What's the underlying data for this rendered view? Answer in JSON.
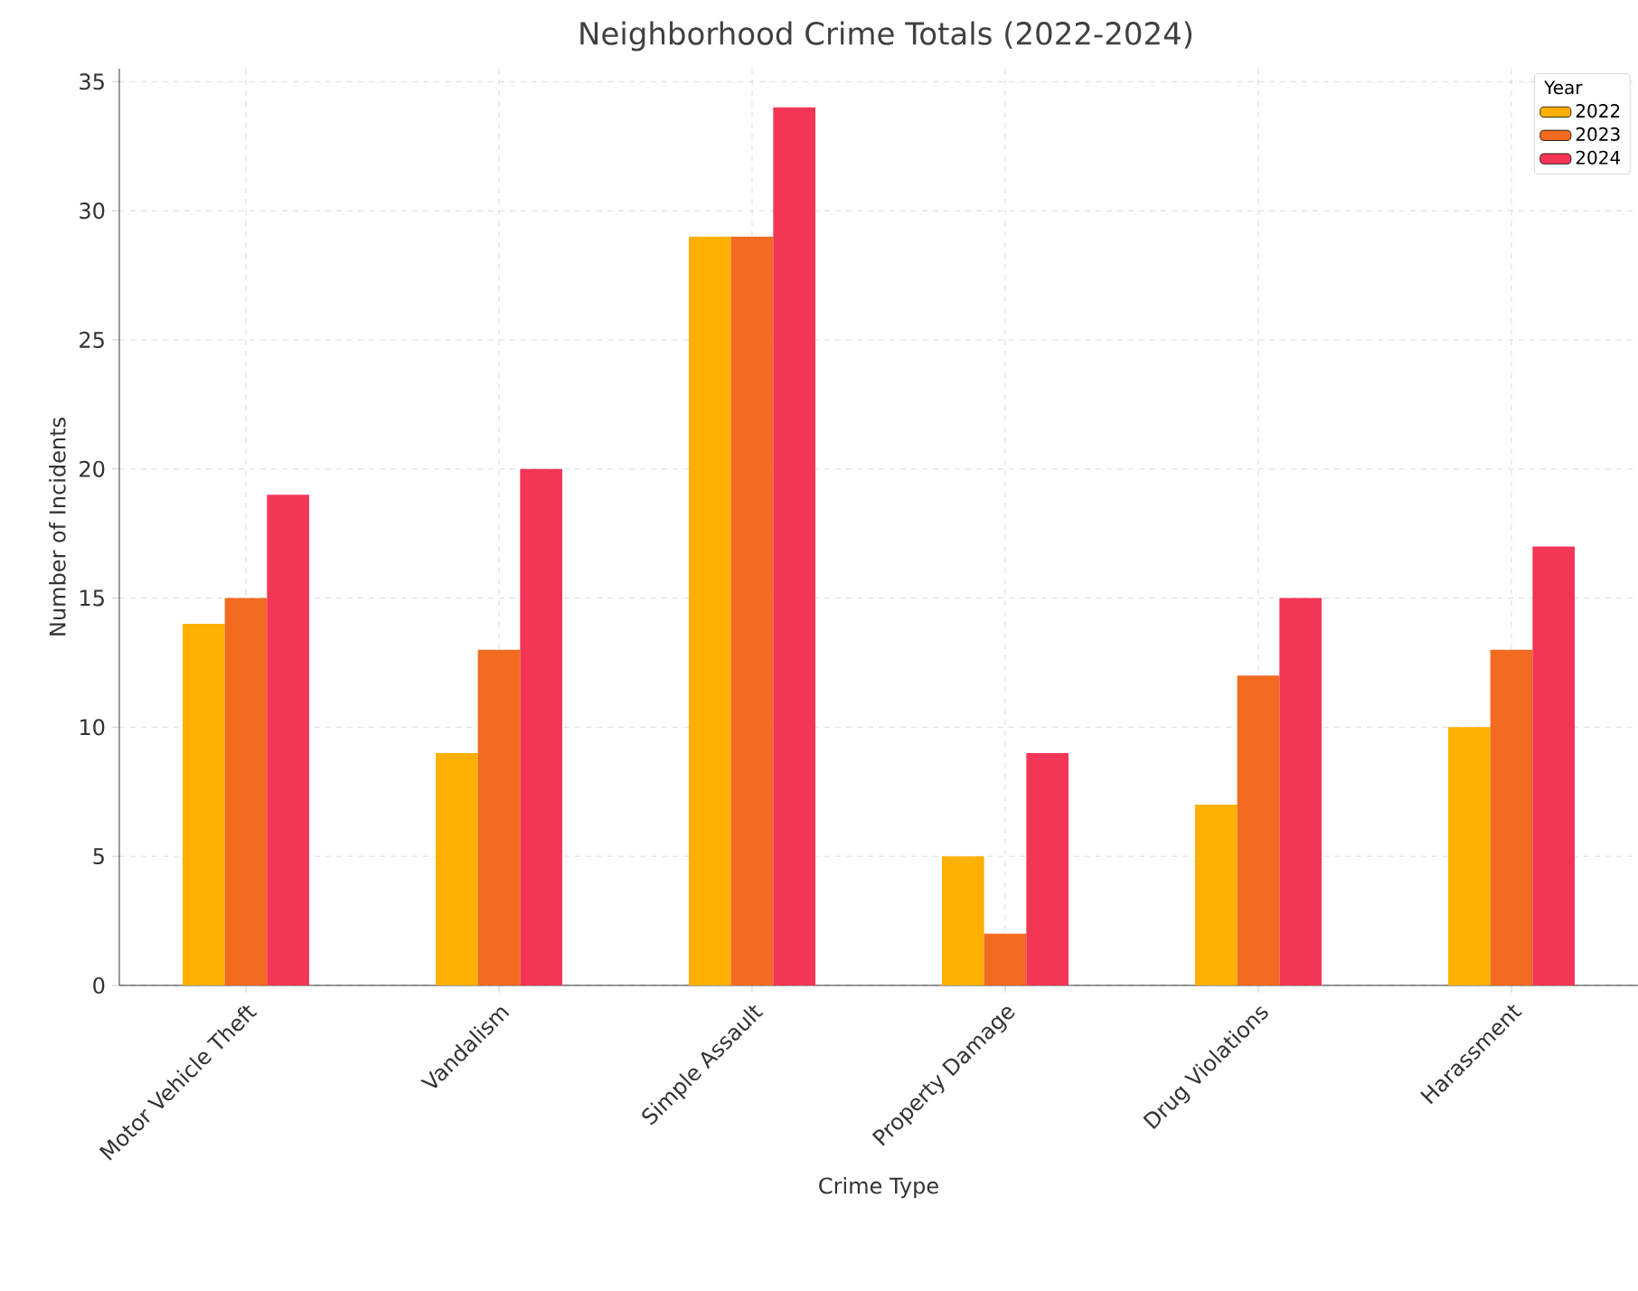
{
  "chart_data": {
    "type": "bar",
    "title": "Neighborhood Crime Totals (2022-2024)",
    "xlabel": "Crime Type",
    "ylabel": "Number of Incidents",
    "legend_title": "Year",
    "categories": [
      "Motor Vehicle Theft",
      "Vandalism",
      "Simple Assault",
      "Property Damage",
      "Drug Violations",
      "Harassment"
    ],
    "series": [
      {
        "name": "2022",
        "color": "#ffb000",
        "values": [
          14,
          9,
          29,
          5,
          7,
          10
        ]
      },
      {
        "name": "2023",
        "color": "#f26b21",
        "values": [
          15,
          13,
          29,
          2,
          12,
          13
        ]
      },
      {
        "name": "2024",
        "color": "#f43656",
        "values": [
          19,
          20,
          34,
          9,
          15,
          17
        ]
      }
    ],
    "ylim": [
      0,
      35.5
    ],
    "yticks": [
      0,
      5,
      10,
      15,
      20,
      25,
      30,
      35
    ],
    "grid": true,
    "legend": "top right"
  }
}
